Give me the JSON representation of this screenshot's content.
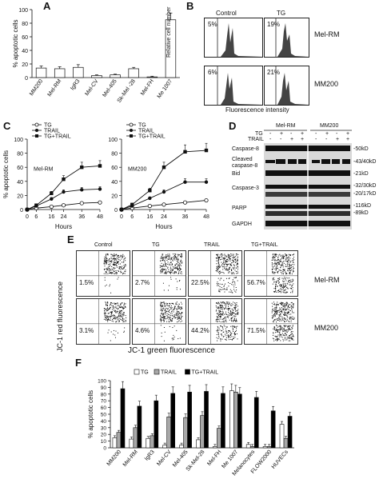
{
  "panel_labels": {
    "a": "A",
    "b": "B",
    "c": "C",
    "d": "D",
    "e": "E",
    "f": "F"
  },
  "chart_a": {
    "type": "bar",
    "ylabel": "% apoptotic cells",
    "ylim": [
      0,
      100
    ],
    "yticks": [
      "0",
      "20",
      "40",
      "60",
      "80",
      "100"
    ],
    "categories": [
      "MM200",
      "Mel-RM",
      "IgR3",
      "Mel-CV",
      "Mel-405",
      "Sk-Mel -28",
      "Mel-FH",
      "Me 1007"
    ],
    "values": [
      14,
      13,
      15,
      3,
      4,
      13,
      1,
      85
    ],
    "errors": [
      3,
      3,
      4,
      1,
      1,
      2,
      1,
      10
    ]
  },
  "panel_b": {
    "col_titles": [
      "Control",
      "TG"
    ],
    "rows": [
      {
        "label": "Mel-RM",
        "pcts": [
          "5%",
          "19%"
        ]
      },
      {
        "label": "MM200",
        "pcts": [
          "6%",
          "21%"
        ]
      }
    ],
    "ylabel": "Relative cell number",
    "xlabel": "Fluorescence intensity"
  },
  "chart_c": {
    "type": "line",
    "ylabel": "% apoptotic cells",
    "xlabel": "Hours",
    "x": [
      0,
      6,
      16,
      24,
      36,
      48
    ],
    "xticks": [
      "0",
      "6",
      "16",
      "24",
      "36",
      "48"
    ],
    "yticks": [
      "0",
      "20",
      "40",
      "60",
      "80",
      "100"
    ],
    "ylim": [
      0,
      100
    ],
    "legend": [
      "TG",
      "TRAIL",
      "TG+TRAIL"
    ],
    "plots": [
      {
        "name": "Mel-RM",
        "series": [
          {
            "name": "TG",
            "values": [
              0,
              2,
              4,
              6,
              9,
              10
            ]
          },
          {
            "name": "TRAIL",
            "values": [
              0,
              5,
              15,
              25,
              28,
              29
            ]
          },
          {
            "name": "TG+TRAIL",
            "values": [
              0,
              6,
              23,
              43,
              60,
              62
            ]
          }
        ]
      },
      {
        "name": "MM200",
        "series": [
          {
            "name": "TG",
            "values": [
              0,
              2,
              5,
              7,
              10,
              13
            ]
          },
          {
            "name": "TRAIL",
            "values": [
              0,
              5,
              16,
              25,
              39,
              39
            ]
          },
          {
            "name": "TG+TRAIL",
            "values": [
              0,
              7,
              27,
              60,
              82,
              84
            ]
          }
        ]
      }
    ]
  },
  "panel_d": {
    "cell_lines": [
      "Mel-RM",
      "MM200"
    ],
    "tg_row": {
      "label": "TG",
      "marks": [
        "-",
        "+",
        "-",
        "+",
        "-",
        "+",
        "-",
        "+"
      ]
    },
    "trail_row": {
      "label": "TRAIL",
      "marks": [
        "-",
        "-",
        "+",
        "+",
        "-",
        "-",
        "+",
        "+"
      ]
    },
    "proteins": [
      "Caspase-8",
      "Cleaved caspase-8",
      "Bid",
      "Caspase-3",
      "PARP",
      "GAPDH"
    ],
    "sizes": [
      "-50kD",
      "-43/40kD",
      "-21kD",
      "-32/30kD",
      "-20/17kD",
      "-116kD",
      "-89kD"
    ]
  },
  "panel_e": {
    "col_titles": [
      "Control",
      "TG",
      "TRAIL",
      "TG+TRAIL"
    ],
    "rows": [
      {
        "label": "Mel-RM",
        "pcts": [
          "1.5%",
          "2.7%",
          "22.5%",
          "56.7%"
        ]
      },
      {
        "label": "MM200",
        "pcts": [
          "3.1%",
          "4.6%",
          "44.2%",
          "71.5%"
        ]
      }
    ],
    "ylabel": "JC-1 red fluorescence",
    "xlabel": "JC-1 green fluorescence"
  },
  "chart_f": {
    "type": "bar",
    "ylabel": "% apoptotic cells",
    "ylim": [
      0,
      100
    ],
    "yticks": [
      "0",
      "10",
      "20",
      "30",
      "40",
      "50",
      "60",
      "70",
      "80",
      "90",
      "100"
    ],
    "legend": [
      "TG",
      "TRAIL",
      "TG+TRAIL"
    ],
    "categories": [
      "MM200",
      "Mel-RM",
      "IgR3",
      "Mel-CV",
      "Mel-405",
      "Sk-Mel-28",
      "Mel-FH",
      "Me 1007",
      "Melanocytes",
      "FLOW2000",
      "HUVECs"
    ],
    "series": [
      {
        "name": "TG",
        "values": [
          15,
          13,
          14,
          4,
          4,
          12,
          2,
          85,
          5,
          2,
          35
        ]
      },
      {
        "name": "TRAIL",
        "values": [
          23,
          30,
          18,
          46,
          45,
          48,
          29,
          83,
          2,
          2,
          14
        ]
      },
      {
        "name": "TG+TRAIL",
        "values": [
          88,
          62,
          70,
          81,
          83,
          84,
          81,
          80,
          75,
          55,
          47
        ]
      }
    ]
  },
  "colors": {
    "TG": "#ffffff",
    "TRAIL": "#a8a8a8",
    "TG+TRAIL": "#000000"
  }
}
